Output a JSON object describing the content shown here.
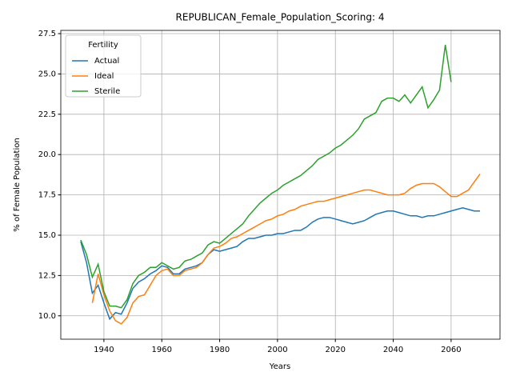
{
  "chart_data": {
    "type": "line",
    "title": "REPUBLICAN_Female_Population_Scoring: 4",
    "x_label": "Years",
    "y_label": "% of Female Population",
    "legend_title": "Fertility",
    "legend_loc": "upper left",
    "grid": true,
    "x": [
      1932,
      1934,
      1936,
      1938,
      1940,
      1942,
      1944,
      1946,
      1948,
      1950,
      1952,
      1954,
      1956,
      1958,
      1960,
      1962,
      1964,
      1966,
      1968,
      1970,
      1972,
      1974,
      1976,
      1978,
      1980,
      1982,
      1984,
      1986,
      1988,
      1990,
      1992,
      1994,
      1996,
      1998,
      2000,
      2002,
      2004,
      2006,
      2008,
      2010,
      2012,
      2014,
      2016,
      2018,
      2020,
      2022,
      2024,
      2026,
      2028,
      2030,
      2032,
      2034,
      2036,
      2038,
      2040,
      2042,
      2044,
      2046,
      2048,
      2050,
      2052,
      2054,
      2056,
      2058,
      2060,
      2062,
      2064,
      2066,
      2068,
      2070
    ],
    "series": [
      {
        "name": "Actual",
        "color": "#1f77b4",
        "values": [
          14.6,
          13.3,
          11.4,
          11.9,
          10.8,
          9.8,
          10.2,
          10.1,
          10.8,
          11.7,
          12.1,
          12.3,
          12.6,
          12.8,
          13.1,
          13.0,
          12.6,
          12.6,
          12.9,
          13.0,
          13.1,
          13.3,
          13.8,
          14.1,
          14.0,
          14.1,
          14.2,
          14.3,
          14.6,
          14.8,
          14.8,
          14.9,
          15.0,
          15.0,
          15.1,
          15.1,
          15.2,
          15.3,
          15.3,
          15.5,
          15.8,
          16.0,
          16.1,
          16.1,
          16.0,
          15.9,
          15.8,
          15.7,
          15.8,
          15.9,
          16.1,
          16.3,
          16.4,
          16.5,
          16.5,
          16.4,
          16.3,
          16.2,
          16.2,
          16.1,
          16.2,
          16.2,
          16.3,
          16.4,
          16.5,
          16.6,
          16.7,
          16.6,
          16.5,
          16.5
        ]
      },
      {
        "name": "Ideal",
        "color": "#ff7f0e",
        "values": [
          null,
          null,
          10.8,
          12.6,
          11.3,
          10.3,
          9.7,
          9.5,
          9.9,
          10.8,
          11.2,
          11.3,
          11.9,
          12.5,
          12.8,
          12.9,
          12.5,
          12.5,
          12.8,
          12.9,
          13.0,
          13.3,
          13.8,
          14.2,
          14.3,
          14.5,
          14.8,
          14.9,
          15.1,
          15.3,
          15.5,
          15.7,
          15.9,
          16.0,
          16.2,
          16.3,
          16.5,
          16.6,
          16.8,
          16.9,
          17.0,
          17.1,
          17.1,
          17.2,
          17.3,
          17.4,
          17.5,
          17.6,
          17.7,
          17.8,
          17.8,
          17.7,
          17.6,
          17.5,
          17.5,
          17.5,
          17.6,
          17.9,
          18.1,
          18.2,
          18.2,
          18.2,
          18.0,
          17.7,
          17.4,
          17.4,
          17.6,
          17.8,
          18.3,
          18.8
        ]
      },
      {
        "name": "Sterile",
        "color": "#2ca02c",
        "values": [
          14.7,
          13.8,
          12.4,
          13.2,
          11.5,
          10.6,
          10.6,
          10.5,
          11.0,
          12.0,
          12.5,
          12.7,
          13.0,
          13.0,
          13.3,
          13.1,
          12.9,
          13.0,
          13.4,
          13.5,
          13.7,
          13.9,
          14.4,
          14.6,
          14.5,
          14.8,
          15.1,
          15.4,
          15.7,
          16.2,
          16.6,
          17.0,
          17.3,
          17.6,
          17.8,
          18.1,
          18.3,
          18.5,
          18.7,
          19.0,
          19.3,
          19.7,
          19.9,
          20.1,
          20.4,
          20.6,
          20.9,
          21.2,
          21.6,
          22.2,
          22.4,
          22.6,
          23.3,
          23.5,
          23.5,
          23.3,
          23.7,
          23.2,
          23.7,
          24.2,
          22.9,
          23.4,
          24.0,
          26.8,
          24.5,
          null,
          null,
          null,
          null,
          null
        ]
      }
    ],
    "xlim": [
      1925.1,
      2076.9
    ],
    "xticks": [
      1940,
      1960,
      1980,
      2000,
      2020,
      2040,
      2060
    ],
    "ylim": [
      8.55,
      27.7
    ],
    "yticks": [
      {
        "value": 10,
        "label": "10.0"
      },
      12.5,
      {
        "value": 15,
        "label": "15.0"
      },
      17.5,
      {
        "value": 20,
        "label": "20.0"
      },
      22.5,
      {
        "value": 25,
        "label": "25.0"
      },
      27.5
    ]
  }
}
